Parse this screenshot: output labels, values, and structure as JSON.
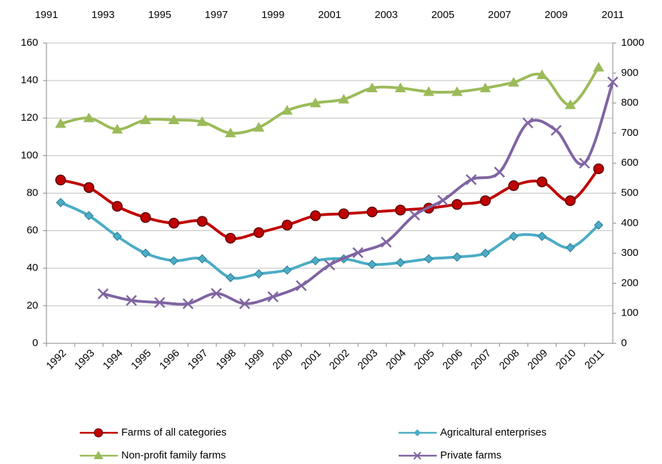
{
  "chart_data": {
    "type": "line",
    "categories": [
      "1992",
      "1993",
      "1994",
      "1995",
      "1996",
      "1997",
      "1998",
      "1999",
      "2000",
      "2001",
      "2002",
      "2003",
      "2004",
      "2005",
      "2006",
      "2007",
      "2008",
      "2009",
      "2010",
      "2011"
    ],
    "ylim": [
      0,
      160
    ],
    "yticks": [
      0,
      20,
      40,
      60,
      80,
      100,
      120,
      140,
      160
    ],
    "y2lim": [
      0,
      1000
    ],
    "y2ticks": [
      0,
      100,
      200,
      300,
      400,
      500,
      600,
      700,
      800,
      900,
      1000
    ],
    "x2lim": [
      1991,
      2011
    ],
    "x2ticks": [
      1991,
      1993,
      1995,
      1997,
      1999,
      2001,
      2003,
      2005,
      2007,
      2009,
      2011
    ],
    "grid": true,
    "legend": "bottom",
    "smooth": true,
    "series": [
      {
        "name": "Farms of all categories",
        "color": "#c00000",
        "marker": "circle",
        "values": [
          87,
          83,
          73,
          67,
          64,
          65,
          56,
          59,
          63,
          68,
          69,
          70,
          71,
          72,
          74,
          76,
          84,
          86,
          76,
          93
        ]
      },
      {
        "name": "Agricaltural enterprises",
        "color": "#4bacc6",
        "marker": "diamond",
        "values": [
          75,
          68,
          57,
          48,
          44,
          45,
          35,
          37,
          39,
          44,
          45,
          42,
          43,
          45,
          46,
          48,
          57,
          57,
          51,
          63
        ]
      },
      {
        "name": "Non-profit family farms",
        "color": "#9bbb59",
        "marker": "triangle",
        "values": [
          117,
          120,
          114,
          119,
          119,
          118,
          112,
          115,
          124,
          128,
          130,
          136,
          136,
          134,
          134,
          136,
          139,
          143,
          127,
          147
        ]
      },
      {
        "name": "Private farms",
        "color": "#8064a2",
        "marker": "x",
        "axis": "y2",
        "xaxis": "x2",
        "x": [
          1993,
          1994,
          1995,
          1996,
          1997,
          1998,
          1999,
          2000,
          2001,
          2002,
          2003,
          2004,
          2005,
          2006,
          2007,
          2008,
          2009,
          2010,
          2011
        ],
        "values": [
          165,
          143,
          136,
          132,
          166,
          132,
          155,
          192,
          261,
          302,
          337,
          427,
          476,
          545,
          570,
          734,
          709,
          600,
          870
        ]
      }
    ]
  }
}
